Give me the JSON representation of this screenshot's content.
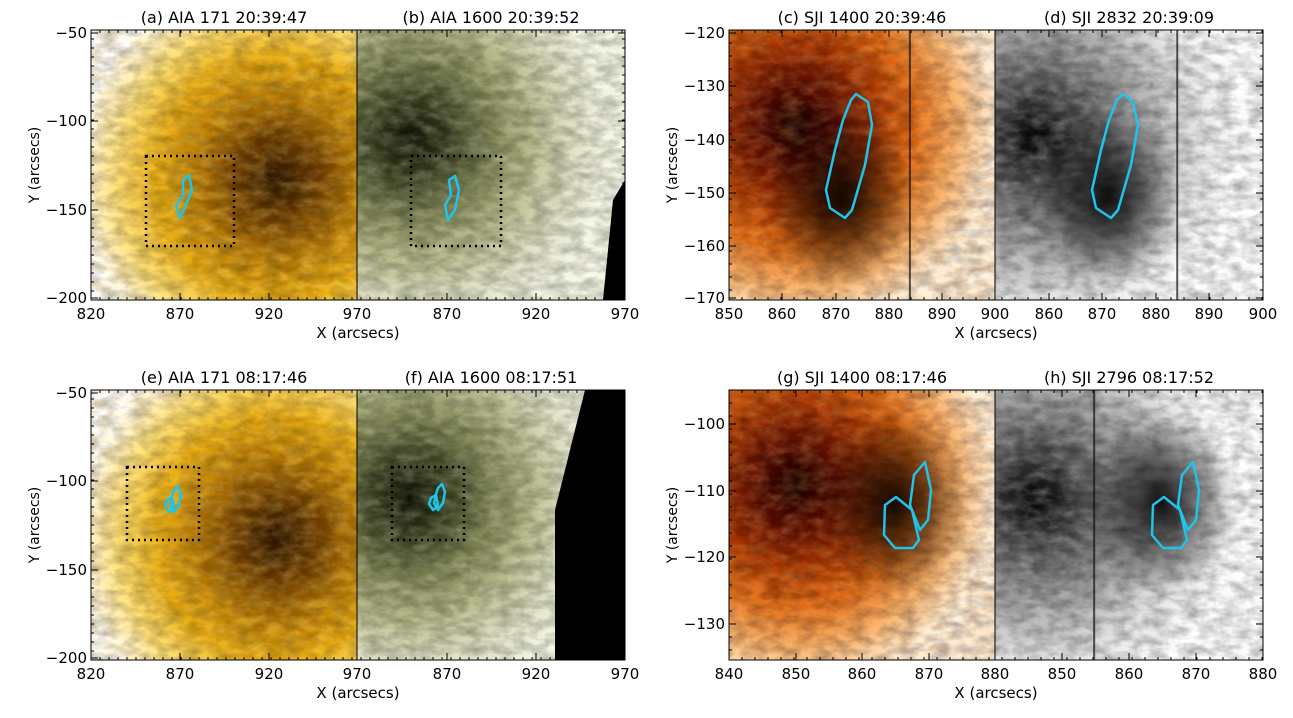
{
  "colors": {
    "contour": "#1fc4ea",
    "box": "#000000",
    "aia171": [
      "#2a1400",
      "#6b3c00",
      "#b97c06",
      "#e8ad10",
      "#ffe277",
      "#ffffff"
    ],
    "aia1600": [
      "#0f1205",
      "#3c4322",
      "#7f8453",
      "#b6b888",
      "#dfe0c4",
      "#f8f8ea"
    ],
    "sji1400": [
      "#150000",
      "#5a0b00",
      "#a53300",
      "#e26a12",
      "#fbb36a",
      "#fff3df"
    ],
    "sji_gray": [
      "#000000",
      "#404040",
      "#7c7c7c",
      "#b3b3b3",
      "#e6e6e6",
      "#ffffff"
    ]
  },
  "panels": [
    {
      "title": "(a) AIA 171  20:39:47",
      "palette": "aia171",
      "blank": false
    },
    {
      "title": "(b) AIA 1600  20:39:52",
      "palette": "aia1600",
      "blank": false
    },
    {
      "title": "(c) SJI 1400  20:39:46",
      "palette": "sji1400",
      "blank": false
    },
    {
      "title": "(d) SJI 2832  20:39:09",
      "palette": "sji_gray",
      "blank": false
    },
    {
      "title": "(e) AIA 171  08:17:46",
      "palette": "aia171",
      "blank": false
    },
    {
      "title": "(f) AIA 1600  08:17:51",
      "palette": "aia1600",
      "blank": true
    },
    {
      "title": "(g) SJI 1400  08:17:46",
      "palette": "sji1400",
      "blank": false
    },
    {
      "title": "(h) SJI 2796  08:17:52",
      "palette": "sji_gray",
      "blank": false
    }
  ],
  "groups": [
    {
      "id": "top-left",
      "xlabel": "X (arcsecs)",
      "ylabel": "Y (arcsecs)",
      "xticks": [
        "820",
        "870",
        "920",
        "970",
        "870",
        "920",
        "970"
      ],
      "yticks": [
        "−50",
        "−100",
        "−150",
        "−200"
      ]
    },
    {
      "id": "top-right",
      "xlabel": "X (arcsecs)",
      "ylabel": "Y (arcsecs)",
      "xticks": [
        "850",
        "860",
        "870",
        "880",
        "890",
        "900",
        "860",
        "870",
        "880",
        "890",
        "900"
      ],
      "yticks": [
        "−120",
        "−130",
        "−140",
        "−150",
        "−160",
        "−170"
      ]
    },
    {
      "id": "bottom-left",
      "xlabel": "X (arcsecs)",
      "ylabel": "Y (arcsecs)",
      "xticks": [
        "820",
        "870",
        "920",
        "970",
        "870",
        "920",
        "970"
      ],
      "yticks": [
        "−50",
        "−100",
        "−150",
        "−200"
      ]
    },
    {
      "id": "bottom-right",
      "xlabel": "X (arcsecs)",
      "ylabel": "Y (arcsecs)",
      "xticks": [
        "840",
        "850",
        "860",
        "870",
        "880",
        "850",
        "860",
        "870",
        "880"
      ],
      "yticks": [
        "−100",
        "−110",
        "−120",
        "−130"
      ]
    }
  ]
}
